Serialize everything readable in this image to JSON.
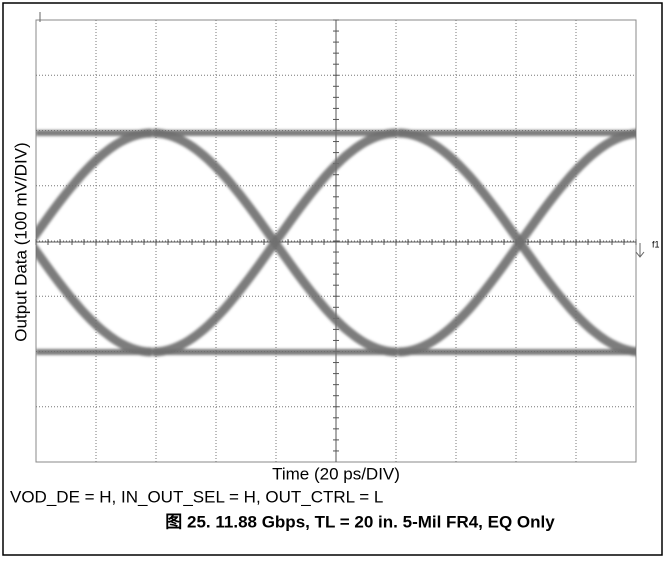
{
  "plot": {
    "y_axis_label": "Output Data (100 mV/DIV)",
    "x_axis_label": "Time (20 ps/DIV)",
    "marker": "f1"
  },
  "conditions": "VOD_DE = H, IN_OUT_SEL = H, OUT_CTRL = L",
  "caption": "图 25. 11.88 Gbps, TL = 20 in. 5-Mil FR4, EQ Only"
}
